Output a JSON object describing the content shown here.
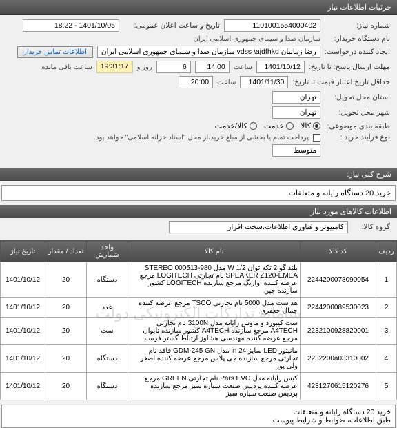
{
  "header": {
    "title": "جزئیات اطلاعات نیاز"
  },
  "form": {
    "need_no_label": "شماره نیاز:",
    "need_no": "1101001554000402",
    "buyer_label": "نام دستگاه خریدار:",
    "buyer": "سازمان صدا و سیمای جمهوری اسلامی ایران",
    "announce_label": "تاریخ و ساعت اعلان عمومی:",
    "announce": "1401/10/05 - 18:22",
    "requester_label": "ایجاد کننده درخواست:",
    "requester": "رضا زمانیان vdss \\ajdfhkd سازمان صدا و سیمای جمهوری اسلامی ایران",
    "contact_btn": "اطلاعات تماس خریدار",
    "deadline_label": "مهلت ارسال پاسخ: تا تاریخ:",
    "deadline_date": "1401/10/12",
    "deadline_time_label": "ساعت",
    "deadline_time": "14:00",
    "days_count": "6",
    "days_label": "روز و",
    "remaining_time": "19:31:17",
    "remaining_label": "ساعت باقی مانده",
    "validity_label": "حداقل تاریخ اعتبار قیمت تا تاریخ:",
    "validity_date": "1401/11/30",
    "validity_time_label": "ساعت",
    "validity_time": "20:00",
    "loc_label": "استان محل تحویل:",
    "loc_province": "تهران",
    "city_label": "شهر محل تحویل:",
    "city": "تهران",
    "classify_label": "طبقه بندی موضوعی:",
    "cat_goods": "کالا",
    "cat_service": "خدمت",
    "cat_goods_service": "کالا/خدمت",
    "process_label": "نوع فرآیند خرید :",
    "process_note": "پرداخت تمام یا بخشی از مبلغ خرید،از محل \"اسناد خزانه اسلامی\" خواهد بود.",
    "medium": "متوسط"
  },
  "need_title_label": "شرح کلی نیاز:",
  "need_title": "خرید 20 دستگاه رایانه و متعلقات",
  "items_section": "اطلاعات کالاهای مورد نیاز",
  "group_label": "گروه کالا:",
  "group_value": "کامپیوتر و فناوری اطلاعات،سخت افزار",
  "watermark_text": "سامانه تدارکات الکترونیکی دولت",
  "watermark_phone": "۰۲۱-۴۱۹۳۴ :مرکز",
  "table": {
    "headers": [
      "ردیف",
      "کد کالا",
      "نام کالا",
      "واحد شمارش",
      "تعداد / مقدار",
      "تاریخ نیاز"
    ],
    "rows": [
      [
        "1",
        "2244200078090054",
        "بلند گو 2 تکه توان W 1/2 مدل STEREO 000513-980 SPEAKER Z120-EMEA نام تجارتی LOGITECH مرجع عرضه کننده اوازنگ مرجع سازنده LOGITECH کشور سازنده چین",
        "دستگاه",
        "20",
        "1401/10/12"
      ],
      [
        "2",
        "2244200089530023",
        "هد ست مدل 5000 نام تجارتی TSCO مرجع عرضه کننده جمال جعفری",
        "عدد",
        "20",
        "1401/10/12"
      ],
      [
        "3",
        "2232100928820001",
        "ست کیبورد و ماوس رایانه مدل 3100N نام تجارتی A4TECH مرجع سازنده A4TECH کشور سازنده تایوان مرجع عرضه کننده مهندسی هشاوز ارتباط گستر فرساد",
        "ست",
        "20",
        "1401/10/12"
      ],
      [
        "4",
        "2232200a03310002",
        "مانیتور LED سایز in 24 مدل GDM-245 GN فاقد نام تجارتی مرجع سازنده جی پلاس مرجع عرضه کننده اصغر ولی پور",
        "دستگاه",
        "20",
        "1401/10/12"
      ],
      [
        "5",
        "4231270615120276",
        "کیس رایانه مدل Pars EVO نام تجارتی GREEN مرجع عرضه کننده پردیس صنعت سیاره سبز مرجع سازنده پردیس صنعت سیاره سبز",
        "دستگاه",
        "20",
        "1401/10/12"
      ]
    ]
  },
  "bottom": {
    "line1": "خرید 20 دستگاه رایانه و متعلقات",
    "line2": "طبق اطلاعات، ضوابط و شرایط پیوست"
  }
}
